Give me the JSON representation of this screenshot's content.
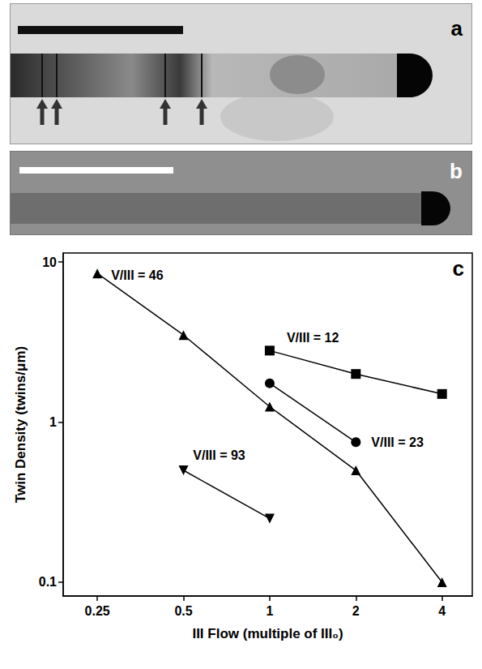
{
  "panels": {
    "a": {
      "label": "a"
    },
    "b": {
      "label": "b"
    }
  },
  "chart_data": {
    "type": "line",
    "panel_label": "c",
    "x_label": "III Flow (multiple of III₀)",
    "y_label": "Twin Density (twins/μm)",
    "log": true,
    "grid": false,
    "xlim": [
      0.19,
      5.1
    ],
    "xticks": [
      0.25,
      0.5,
      1,
      2,
      4
    ],
    "ylim": [
      0.082,
      11.4
    ],
    "yticks": [
      0.1,
      1,
      10
    ],
    "series": [
      {
        "name": "V/III = 46",
        "color": "#000000",
        "marker": "triangle",
        "x": [
          0.25,
          0.5,
          1,
          2,
          4
        ],
        "values": [
          8.5,
          3.5,
          1.25,
          0.5,
          0.1
        ]
      },
      {
        "name": "V/III = 12",
        "color": "#000000",
        "marker": "square",
        "x": [
          1,
          2,
          4
        ],
        "values": [
          2.8,
          2.0,
          1.5
        ]
      },
      {
        "name": "V/III = 23",
        "color": "#000000",
        "marker": "circle",
        "x": [
          1,
          2
        ],
        "values": [
          1.75,
          0.75
        ]
      },
      {
        "name": "V/III = 93",
        "color": "#000000",
        "marker": "triangle-down",
        "x": [
          0.5,
          1
        ],
        "values": [
          0.5,
          0.25
        ]
      }
    ]
  }
}
